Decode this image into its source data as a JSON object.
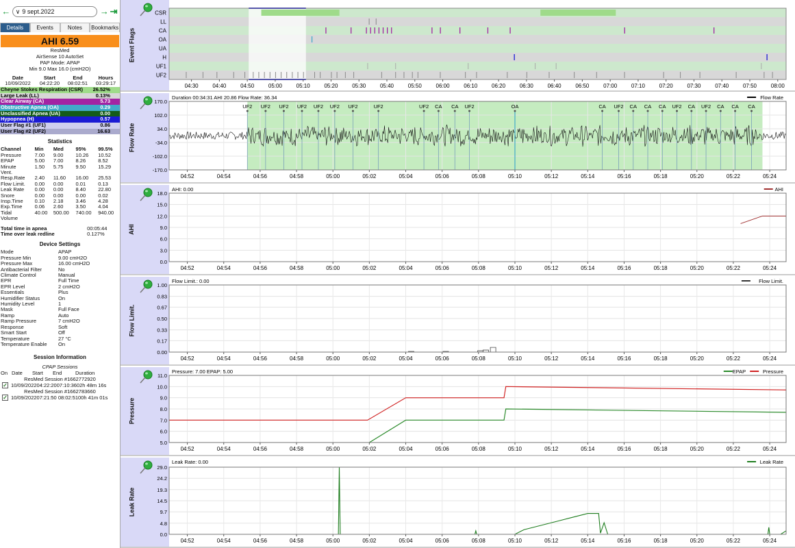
{
  "date": {
    "label": "9 sept.2022"
  },
  "tabs": [
    "Details",
    "Events",
    "Notes",
    "Bookmarks"
  ],
  "summary": {
    "ahi": "AHI 6.59",
    "brand": "ResMed",
    "model": "AirSense 10 AutoSet",
    "mode": "PAP Mode: APAP",
    "range": "Min 9.0 Max 16.0 (cmH2O)"
  },
  "session_times": {
    "headers": [
      "Date",
      "Start",
      "End",
      "Hours"
    ],
    "values": [
      "10/09/2022",
      "04:22:20",
      "08:02:51",
      "03:29:17"
    ]
  },
  "events": [
    {
      "name": "Cheyne Stokes Respiration (CSR)",
      "value": "26.52%",
      "bg": "#9fdb8a",
      "fg": "#000"
    },
    {
      "name": "Large Leak (LL)",
      "value": "0.13%",
      "bg": "#d7d7d7",
      "fg": "#000"
    },
    {
      "name": "Clear Airway (CA)",
      "value": "5.73",
      "bg": "#a323a3",
      "fg": "#fff"
    },
    {
      "name": "Obstructive Apnea (OA)",
      "value": "0.29",
      "bg": "#41a9c9",
      "fg": "#fff"
    },
    {
      "name": "Unclassified Apnea (UA)",
      "value": "0.00",
      "bg": "#145c18",
      "fg": "#fff"
    },
    {
      "name": "Hypopnea (H)",
      "value": "0.57",
      "bg": "#1a1ad4",
      "fg": "#fff"
    },
    {
      "name": "User Flag #1 (UF1)",
      "value": "0.86",
      "bg": "#cfcfef",
      "fg": "#000"
    },
    {
      "name": "User Flag #2 (UF2)",
      "value": "16.63",
      "bg": "#aaaacd",
      "fg": "#000"
    }
  ],
  "statistics": {
    "title": "Statistics",
    "headers": [
      "Channel",
      "Min",
      "Med",
      "95%",
      "99.5%"
    ],
    "rows": [
      [
        "Pressure",
        "7.00",
        "9.00",
        "10.26",
        "10.52"
      ],
      [
        "EPAP",
        "5.00",
        "7.00",
        "8.26",
        "8.52"
      ],
      [
        "Minute",
        "1.50",
        "5.75",
        "9.50",
        "15.29"
      ],
      [
        "Vent.",
        "",
        "",
        "",
        ""
      ],
      [
        "Resp.Rate",
        "2.40",
        "11.60",
        "16.00",
        "25.53"
      ],
      [
        "Flow Limit.",
        "0.00",
        "0.00",
        "0.01",
        "0.13"
      ],
      [
        "Leak Rate",
        "0.00",
        "0.00",
        "8.40",
        "22.80"
      ],
      [
        "Snore",
        "0.00",
        "0.00",
        "0.00",
        "0.02"
      ],
      [
        "Insp.Time",
        "0.10",
        "2.18",
        "3.46",
        "4.28"
      ],
      [
        "Exp.Time",
        "0.06",
        "2.60",
        "3.50",
        "4.04"
      ],
      [
        "Tidal",
        "40.00",
        "500.00",
        "740.00",
        "940.00"
      ],
      [
        "Volume",
        "",
        "",
        "",
        ""
      ]
    ]
  },
  "apnea": [
    [
      "Total time in apnea",
      "00:05:44"
    ],
    [
      "Time over leak redline",
      "0.127%"
    ]
  ],
  "device": {
    "title": "Device Settings",
    "rows": [
      [
        "Mode",
        "APAP"
      ],
      [
        "Pressure Min",
        "9.00 cmH2O"
      ],
      [
        "Pressure Max",
        "16.00 cmH2O"
      ],
      [
        "Antibacterial Filter",
        "No"
      ],
      [
        "Climate Control",
        "Manual"
      ],
      [
        "EPR",
        "Full Time"
      ],
      [
        "EPR Level",
        "2 cmH2O"
      ],
      [
        "Essentials",
        "Plus"
      ],
      [
        "Humidifier Status",
        "On"
      ],
      [
        "Humidity Level",
        "1"
      ],
      [
        "Mask",
        "Full Face"
      ],
      [
        "Ramp",
        "Auto"
      ],
      [
        "Ramp Pressure",
        "7 cmH2O"
      ],
      [
        "Response",
        "Soft"
      ],
      [
        "Smart Start",
        "Off"
      ],
      [
        "Temperature",
        "27 °C"
      ],
      [
        "Temperature Enable",
        "On"
      ]
    ]
  },
  "session_info": {
    "title": "Session Information",
    "subtitle": "CPAP Sessions",
    "headers": [
      "On",
      "Date",
      "Start",
      "End",
      "Duration"
    ],
    "sessions": [
      {
        "name": "ResMed Session #1662772920",
        "row": "10/09/202204:22:2007:10:3602h 48m 16s"
      },
      {
        "name": "ResMed Session #1662783660",
        "row": "10/09/202207:21:50 08:02:5100h 41m 01s"
      }
    ]
  },
  "flags_chart": {
    "label": "Event Flags",
    "rows": [
      "CSR",
      "LL",
      "CA",
      "OA",
      "UA",
      "H",
      "UF1",
      "UF2"
    ],
    "ticks": [
      "04:30",
      "04:40",
      "04:50",
      "05:00",
      "05:10",
      "05:20",
      "05:30",
      "05:40",
      "05:50",
      "06:00",
      "06:10",
      "06:20",
      "06:30",
      "06:40",
      "06:50",
      "07:00",
      "07:10",
      "07:20",
      "07:30",
      "07:40",
      "07:50",
      "08:00"
    ],
    "tick_minutes": [
      30,
      40,
      50,
      60,
      70,
      80,
      90,
      100,
      110,
      120,
      130,
      140,
      150,
      160,
      170,
      180,
      190,
      200,
      210,
      220,
      230,
      240
    ],
    "x_range_minutes": [
      22,
      243
    ],
    "selection_minutes": [
      50.5,
      71
    ],
    "csr_spans_minutes": [
      [
        55,
        83
      ],
      [
        155,
        182
      ]
    ],
    "ca_marks_minutes": [
      78,
      87,
      92.5,
      94,
      95.5,
      97,
      98.5,
      100,
      101.5,
      116,
      119,
      126,
      136,
      144,
      185,
      217
    ],
    "oa_marks_minutes": [
      73
    ],
    "h_marks_minutes": [
      145.5,
      236
    ],
    "uf1_marks_minutes": [
      93,
      103,
      129,
      153,
      160.5,
      234
    ],
    "uf2_marks_minutes": [
      28,
      34,
      39,
      45,
      49,
      52,
      54,
      56,
      58,
      60,
      62,
      64,
      66,
      68,
      70,
      74,
      76,
      80,
      82,
      85,
      88,
      98,
      103,
      106,
      109,
      111,
      119,
      128,
      132,
      143,
      150,
      158,
      167,
      175,
      185,
      199,
      205,
      212,
      225,
      235,
      238
    ]
  },
  "time_axis": {
    "ticks": [
      "04:52",
      "04:54",
      "04:56",
      "04:58",
      "05:00",
      "05:02",
      "05:04",
      "05:06",
      "05:08",
      "05:10",
      "05:12",
      "05:14",
      "05:16",
      "05:18",
      "05:20",
      "05:22",
      "05:24"
    ],
    "minutes": [
      52,
      54,
      56,
      58,
      60,
      62,
      64,
      66,
      68,
      70,
      72,
      74,
      76,
      78,
      80,
      82,
      84
    ],
    "range_minutes": [
      51,
      84.9
    ]
  },
  "flow": {
    "label": "Flow Rate",
    "title": "Duration 00:34:31 AHI 20.86 Flow Rate: 36.34",
    "legend": "Flow Rate",
    "yticks": [
      "170.0",
      "102.0",
      "34.0",
      "-34.0",
      "-102.0",
      "-170.0"
    ],
    "yvalues": [
      170,
      102,
      34,
      -34,
      -102,
      -170
    ],
    "csr_minutes": [
      55.3,
      83.6
    ],
    "flags": [
      {
        "t": 55.3,
        "l": "UF2"
      },
      {
        "t": 56.3,
        "l": "UF2"
      },
      {
        "t": 57.3,
        "l": "UF2"
      },
      {
        "t": 58.3,
        "l": "UF2"
      },
      {
        "t": 59.2,
        "l": "UF2"
      },
      {
        "t": 60.1,
        "l": "UF2"
      },
      {
        "t": 61.1,
        "l": "UF2"
      },
      {
        "t": 62.5,
        "l": "UF2"
      },
      {
        "t": 65.0,
        "l": "UF2"
      },
      {
        "t": 65.8,
        "l": "CA"
      },
      {
        "t": 66.7,
        "l": "CA"
      },
      {
        "t": 67.5,
        "l": "UF2"
      },
      {
        "t": 70.0,
        "l": "OA"
      },
      {
        "t": 74.8,
        "l": "CA"
      },
      {
        "t": 75.7,
        "l": "UF2"
      },
      {
        "t": 76.5,
        "l": "CA"
      },
      {
        "t": 77.3,
        "l": "CA"
      },
      {
        "t": 78.1,
        "l": "CA"
      },
      {
        "t": 78.9,
        "l": "UF2"
      },
      {
        "t": 79.7,
        "l": "CA"
      },
      {
        "t": 80.5,
        "l": "UF2"
      },
      {
        "t": 81.3,
        "l": "CA"
      },
      {
        "t": 82.1,
        "l": "CA"
      },
      {
        "t": 83.0,
        "l": "CA"
      }
    ]
  },
  "ahi_chart": {
    "label": "AHI",
    "title": "AHI: 0.00",
    "legend": "AHI",
    "yticks": [
      "18.0",
      "15.0",
      "12.0",
      "9.0",
      "6.0",
      "3.0",
      "0.0"
    ],
    "yvalues": [
      18,
      15,
      12,
      9,
      6,
      3,
      0
    ],
    "points": [
      [
        82.4,
        10
      ],
      [
        83.6,
        12
      ],
      [
        84.9,
        12
      ]
    ]
  },
  "flowlimit_chart": {
    "label": "Flow Limit.",
    "title": "Flow Limit.: 0.00",
    "legend": "Flow Limit.",
    "yticks": [
      "1.00",
      "0.83",
      "0.67",
      "0.50",
      "0.33",
      "0.17",
      "0.00"
    ],
    "yvalues": [
      1,
      0.83,
      0.67,
      0.5,
      0.33,
      0.17,
      0
    ],
    "bumps": [
      [
        64.3,
        0.01
      ],
      [
        66.2,
        0.01
      ],
      [
        68.1,
        0.02
      ],
      [
        68.4,
        0.03
      ],
      [
        68.8,
        0.07
      ]
    ]
  },
  "pressure_chart": {
    "label": "Pressure",
    "title": "Pressure: 7.00 EPAP: 5.00",
    "legends": [
      "EPAP",
      "Pressure"
    ],
    "yticks": [
      "11.0",
      "10.0",
      "9.0",
      "8.0",
      "7.0",
      "6.0",
      "5.0"
    ],
    "yvalues": [
      11,
      10,
      9,
      8,
      7,
      6,
      5
    ],
    "pressure": [
      [
        51,
        7
      ],
      [
        61.9,
        7
      ],
      [
        64,
        9
      ],
      [
        69.4,
        9
      ],
      [
        69.5,
        10
      ],
      [
        84.9,
        9.7
      ]
    ],
    "epap": [
      [
        62,
        5
      ],
      [
        64,
        7
      ],
      [
        69.4,
        7
      ],
      [
        69.5,
        8
      ],
      [
        84.9,
        7.7
      ]
    ]
  },
  "leak_chart": {
    "label": "Leak Rate",
    "title": "Leak Rate: 0.00",
    "legend": "Leak Rate",
    "yticks": [
      "29.0",
      "24.2",
      "19.3",
      "14.5",
      "9.7",
      "4.8",
      "0.0"
    ],
    "yvalues": [
      29,
      24.2,
      19.3,
      14.5,
      9.7,
      4.8,
      0
    ],
    "series": [
      [
        51,
        0
      ],
      [
        60.3,
        0
      ],
      [
        60.35,
        29
      ],
      [
        60.4,
        0
      ],
      [
        67.8,
        0
      ],
      [
        67.85,
        1.5
      ],
      [
        67.9,
        0
      ],
      [
        70,
        0
      ],
      [
        70.5,
        2
      ],
      [
        71,
        3
      ],
      [
        71.5,
        4
      ],
      [
        72,
        5
      ],
      [
        72.5,
        6
      ],
      [
        73,
        7
      ],
      [
        73.5,
        8
      ],
      [
        74,
        9
      ],
      [
        74.6,
        9
      ],
      [
        74.7,
        0.5
      ],
      [
        74.9,
        5
      ],
      [
        75.1,
        0
      ],
      [
        83.9,
        0
      ],
      [
        83.95,
        3
      ],
      [
        84,
        0
      ],
      [
        84.6,
        0
      ],
      [
        84.9,
        1.5
      ]
    ]
  },
  "colors": {
    "accent": "#f98f1c",
    "csr": "#9fdb8a",
    "ca": "#a323a3",
    "oa": "#41a9c9",
    "h": "#1a1ad4",
    "epap": "#2a8a2a",
    "pressure": "#d02020",
    "leak": "#1e7d1e",
    "ahi": "#a03030",
    "flow": "#000000"
  }
}
